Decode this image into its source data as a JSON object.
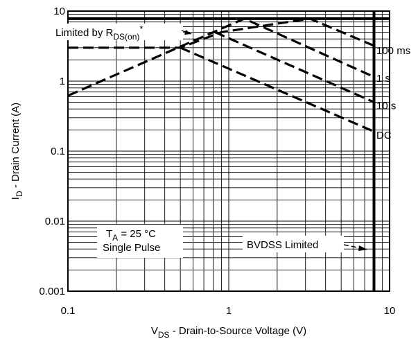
{
  "chart_data": {
    "type": "line",
    "title": "",
    "xlabel": {
      "pre": "V",
      "sub": "DS",
      "post": " - Drain-to-Source Voltage (V)"
    },
    "ylabel": {
      "pre": "I",
      "sub": "D",
      "post": " - Drain Current (A)"
    },
    "xscale": "log",
    "yscale": "log",
    "xlim": [
      0.1,
      10
    ],
    "ylim": [
      0.001,
      10
    ],
    "grid": true,
    "x_ticks": [
      {
        "value": 0.1,
        "label": "0.1"
      },
      {
        "value": 1,
        "label": "1"
      },
      {
        "value": 10,
        "label": "10"
      }
    ],
    "y_ticks": [
      {
        "value": 0.001,
        "label": "0.001"
      },
      {
        "value": 0.01,
        "label": "0.01"
      },
      {
        "value": 0.1,
        "label": "0.1"
      },
      {
        "value": 1,
        "label": "1"
      },
      {
        "value": 10,
        "label": "10"
      }
    ],
    "series": [
      {
        "name": "100 ms",
        "points": [
          [
            0.1,
            3.0
          ],
          [
            0.5,
            3.0
          ],
          [
            0.9,
            5.0
          ],
          [
            3.2,
            7.8
          ],
          [
            8.0,
            3.2
          ]
        ]
      },
      {
        "name": "1 s",
        "points": [
          [
            0.1,
            0.62
          ],
          [
            1.25,
            7.8
          ],
          [
            8.0,
            1.15
          ]
        ]
      },
      {
        "name": "10 s",
        "points": [
          [
            0.82,
            5.0
          ],
          [
            8.0,
            0.5
          ]
        ]
      },
      {
        "name": "DC",
        "points": [
          [
            0.5,
            3.0
          ],
          [
            8.0,
            0.19
          ]
        ]
      }
    ],
    "boundaries": [
      {
        "name": "BVDSS Limited",
        "x": 8.0
      },
      {
        "name": "Limited by RDS(on)",
        "y": 7.8
      }
    ],
    "annotations": {
      "limited_by": {
        "pre": "Limited by R",
        "sub": "DS(on)",
        "post": "*"
      },
      "ta": {
        "pre": "T",
        "sub": "A",
        "post": " = 25 °C"
      },
      "single_pulse": "Single Pulse",
      "bvdss": "BVDSS Limited"
    },
    "colors": {
      "line": "#000000",
      "background": "#ffffff"
    }
  }
}
